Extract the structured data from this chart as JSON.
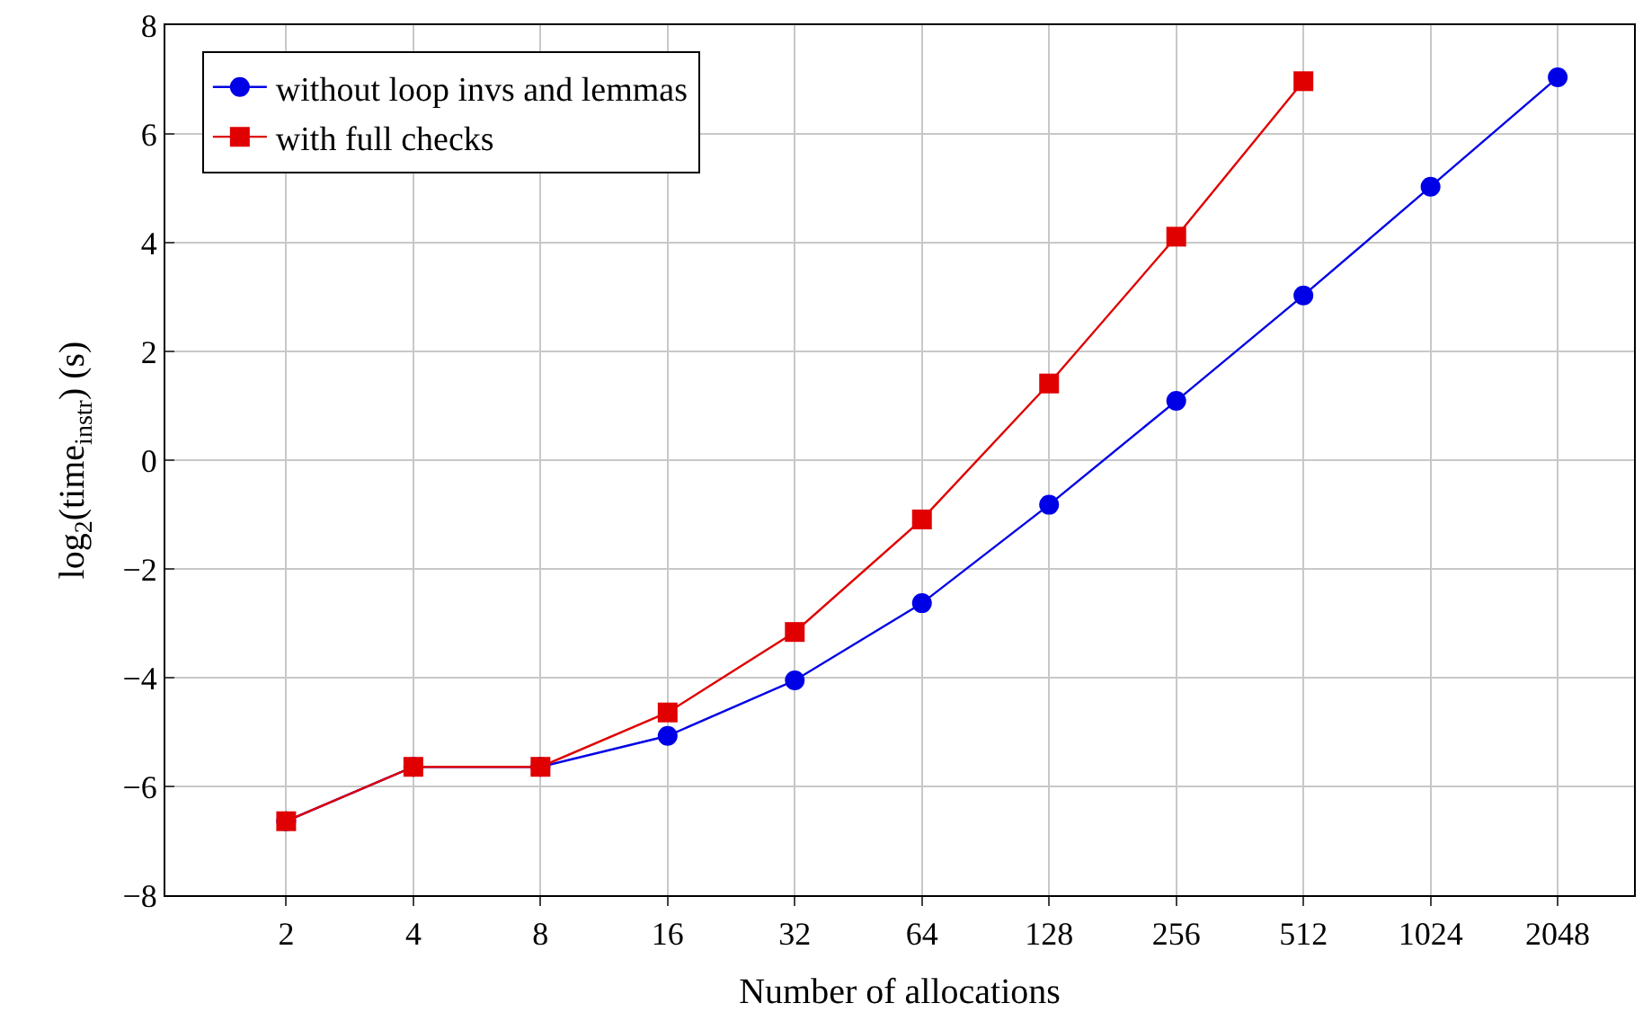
{
  "chart_data": {
    "type": "line",
    "xlabel": "Number of allocations",
    "ylabel": "log$_{2}$(time$_{instr}$) (s)",
    "categories": [
      "2",
      "4",
      "8",
      "16",
      "32",
      "64",
      "128",
      "256",
      "512",
      "1024",
      "2048"
    ],
    "series": [
      {
        "name": "without loop invs and lemmas",
        "color": "#0000e6",
        "marker": "circle",
        "values": [
          -6.64,
          -5.64,
          -5.64,
          -5.07,
          -4.05,
          -2.63,
          -0.82,
          1.09,
          3.03,
          5.03,
          7.04
        ]
      },
      {
        "name": "with full checks",
        "color": "#e00000",
        "marker": "square",
        "values": [
          -6.64,
          -5.64,
          -5.64,
          -4.64,
          -3.16,
          -1.09,
          1.41,
          4.11,
          6.97,
          null,
          null
        ]
      }
    ],
    "ylim": [
      -8,
      8
    ],
    "yticks": [
      -8,
      -6,
      -4,
      -2,
      0,
      2,
      4,
      6,
      8
    ],
    "grid": true,
    "legend": "top left",
    "line_style": "solid"
  }
}
